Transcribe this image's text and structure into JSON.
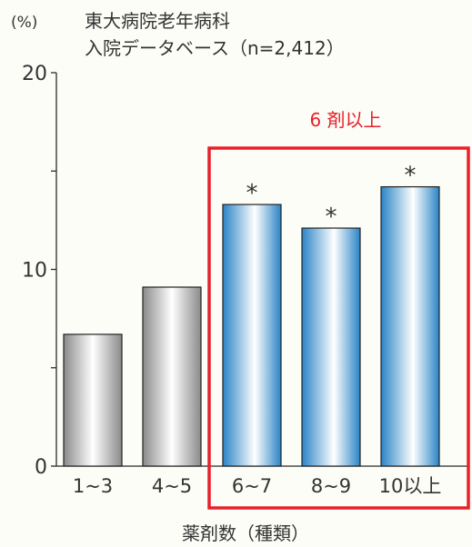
{
  "chart_data": {
    "type": "bar",
    "title": "東大病院老年病科",
    "subtitle": "入院データベース（n=2,412）",
    "ylabel": "(%)",
    "xlabel": "薬剤数（種類）",
    "ylim": [
      0,
      20
    ],
    "yticks": [
      0,
      10,
      20
    ],
    "categories": [
      "1~3",
      "4~5",
      "6~7",
      "8~9",
      "10以上"
    ],
    "values": [
      6.7,
      9.1,
      13.3,
      12.1,
      14.2
    ],
    "significance": [
      "",
      "",
      "*",
      "*",
      "*"
    ],
    "bar_styles": [
      "gray",
      "gray",
      "blue",
      "blue",
      "blue"
    ],
    "highlight": {
      "label": "6 剤以上",
      "categories": [
        "6~7",
        "8~9",
        "10以上"
      ]
    },
    "grid": false
  },
  "colors": {
    "background": "#fdfdf8",
    "axis": "#2a2a2a",
    "text": "#333333",
    "highlight": "#e8202a",
    "gray_edge": "#8e8e8e",
    "gray_light": "#ffffff",
    "blue_edge": "#2e86c8",
    "blue_light": "#ffffff"
  }
}
